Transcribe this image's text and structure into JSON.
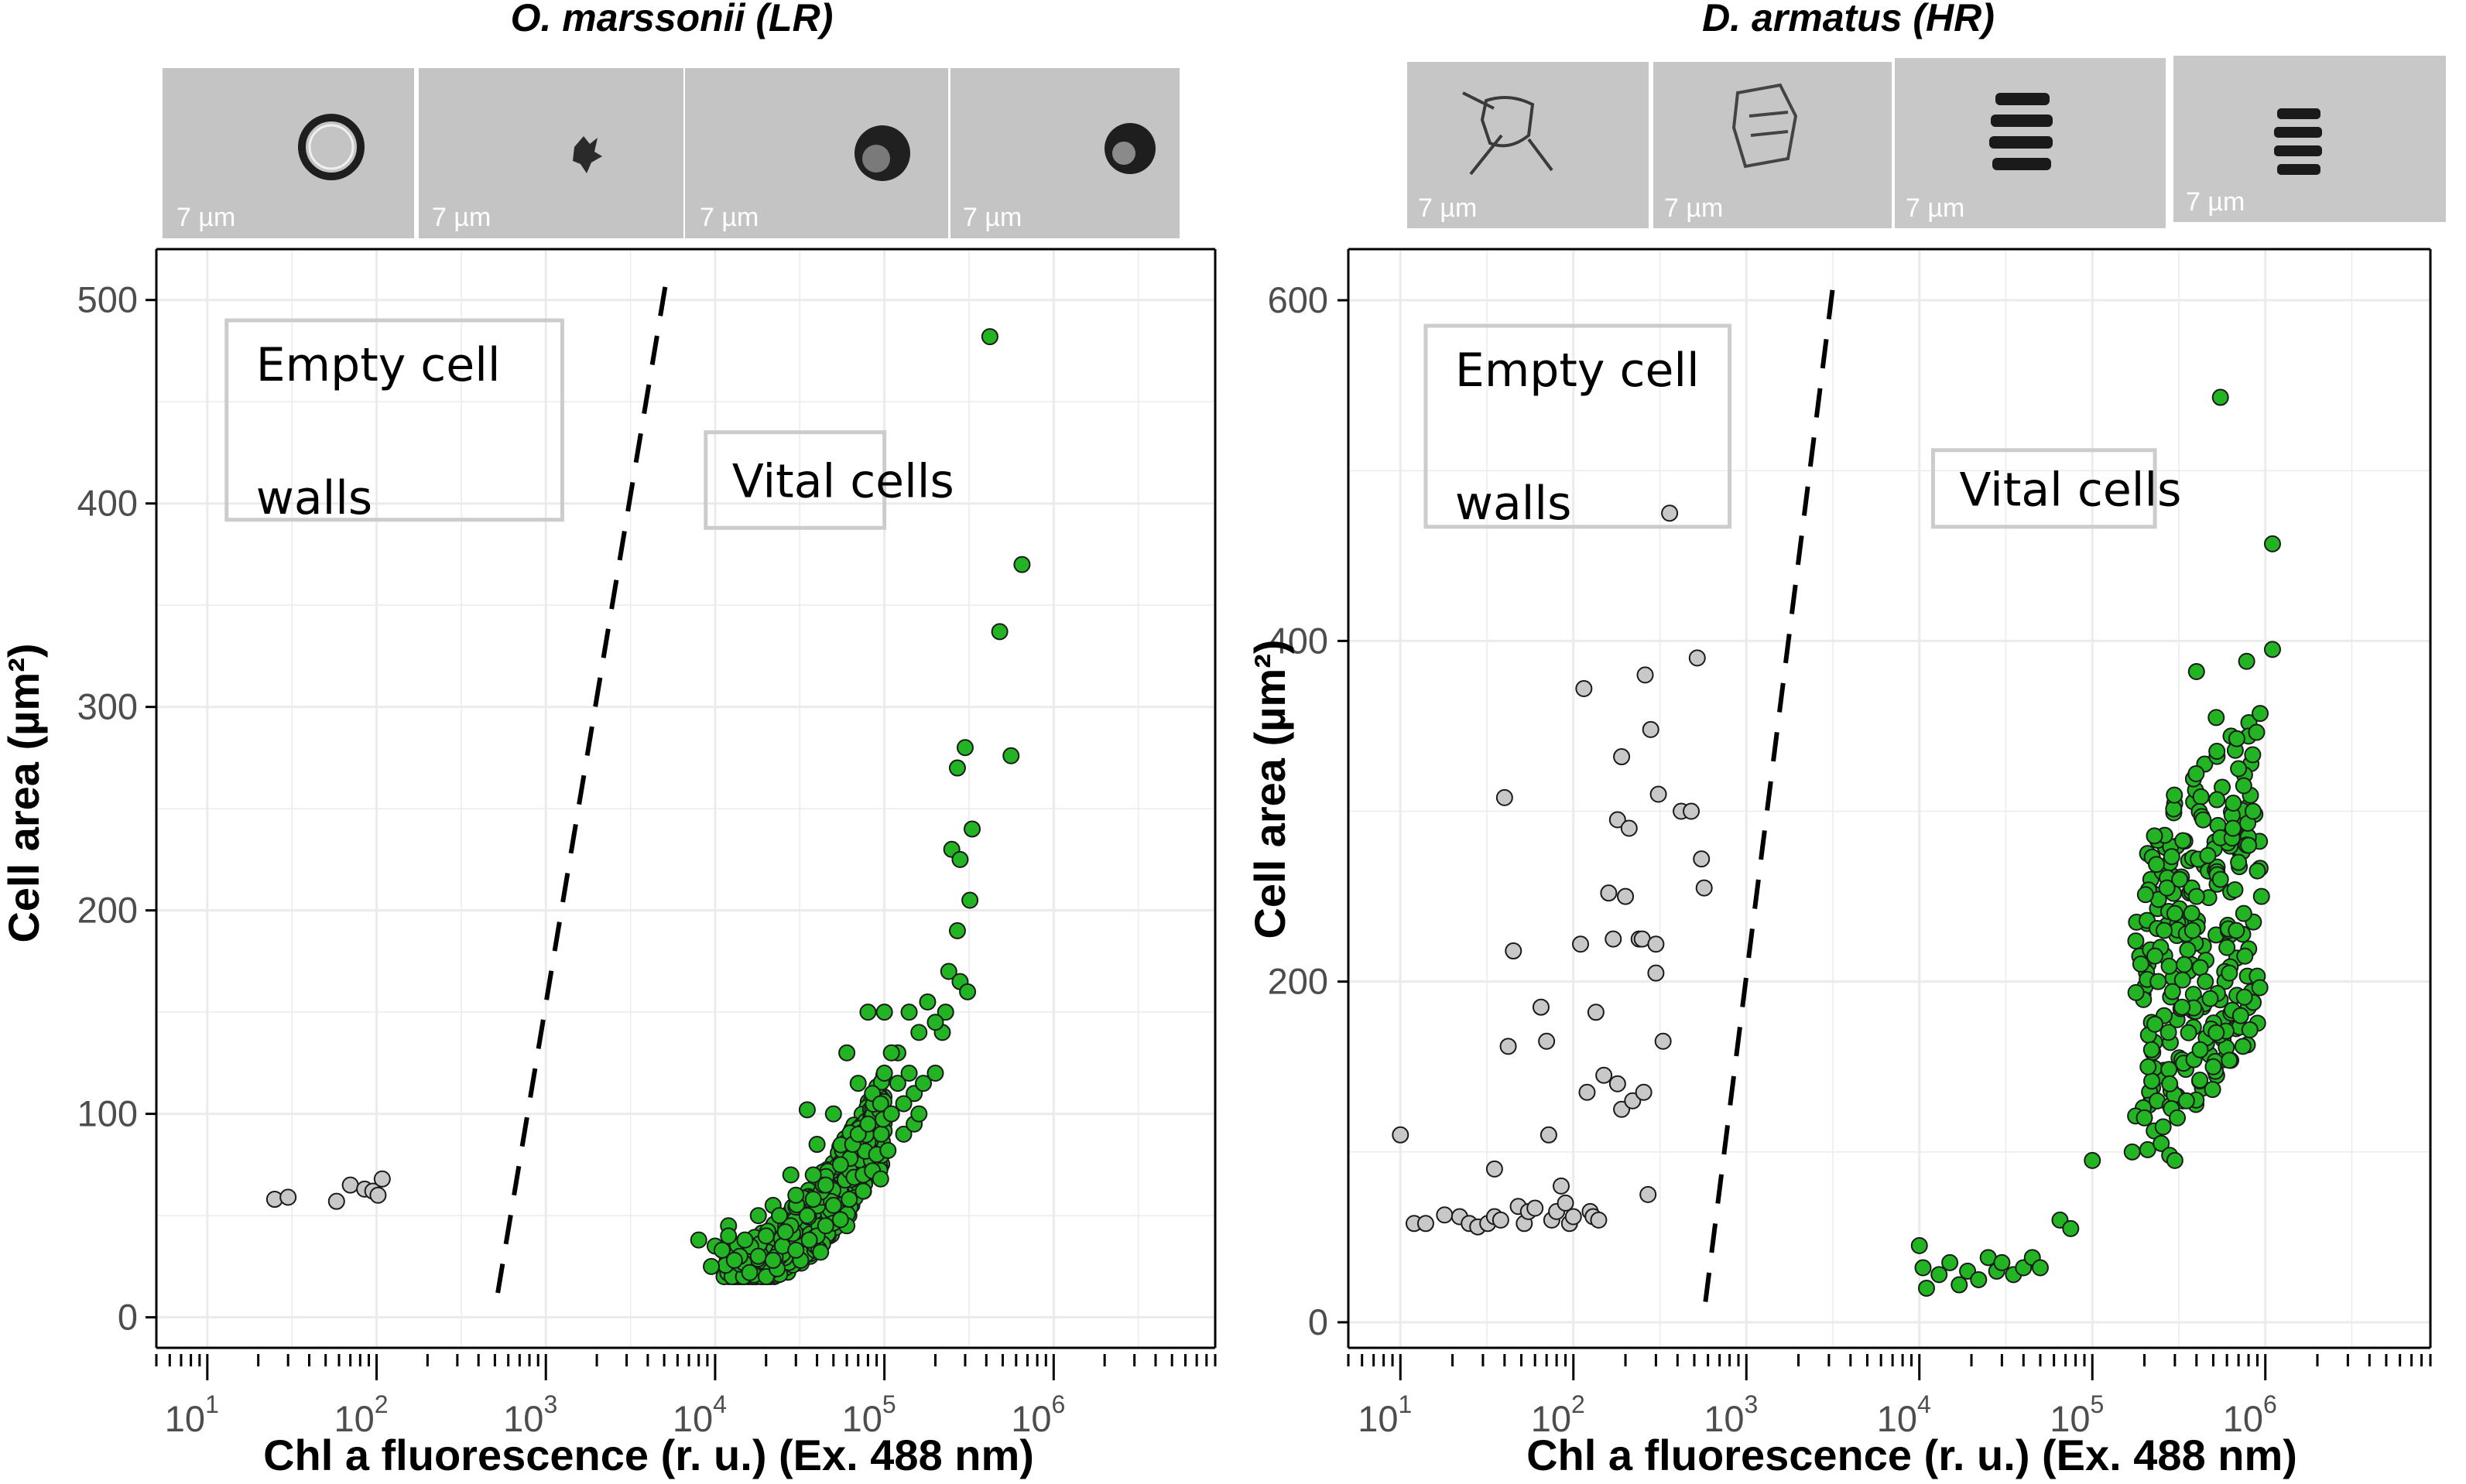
{
  "figure": {
    "colors": {
      "vital": "#22b422",
      "empty": "#c8c8c8",
      "marker_edge": "#1a1a1a",
      "grid": "#ebebeb",
      "annot_box": "#cccccc"
    },
    "cell_image_scale_label": "7 µm"
  },
  "chart_data": [
    {
      "type": "scatter",
      "title": "O. marssonii (LR)",
      "xlabel": "Chl a fluorescence (r. u.) (Ex. 488 nm)",
      "ylabel": "Cell area (µm²)",
      "xscale": "log10",
      "xlim": [
        5,
        9000000
      ],
      "ylim": [
        -15,
        525
      ],
      "x_ticks": [
        {
          "base": "10",
          "exp": "1",
          "value": 10
        },
        {
          "base": "10",
          "exp": "2",
          "value": 100
        },
        {
          "base": "10",
          "exp": "3",
          "value": 1000
        },
        {
          "base": "10",
          "exp": "4",
          "value": 10000
        },
        {
          "base": "10",
          "exp": "5",
          "value": 100000
        },
        {
          "base": "10",
          "exp": "6",
          "value": 1000000
        }
      ],
      "y_ticks": [
        "0",
        "100",
        "200",
        "300",
        "400",
        "500"
      ],
      "annotations": [
        {
          "lines": [
            "Empty cell",
            "walls"
          ],
          "x_at": 13,
          "y_at": 490,
          "x_to": 1250,
          "y_to": 392
        },
        {
          "lines": [
            "Vital cells"
          ],
          "x_at": 8800,
          "y_at": 435,
          "x_to": 100000,
          "y_to": 388
        }
      ],
      "boundary_line": {
        "style": "dashed",
        "points": [
          [
            520,
            12
          ],
          [
            5200,
            512
          ]
        ]
      },
      "series": [
        {
          "name": "Empty cell walls",
          "color": "#c8c8c8",
          "points": [
            [
              25,
              58
            ],
            [
              30,
              59
            ],
            [
              58,
              57
            ],
            [
              70,
              65
            ],
            [
              85,
              63
            ],
            [
              95,
              62
            ],
            [
              102,
              60
            ],
            [
              108,
              68
            ]
          ]
        },
        {
          "name": "Vital cells",
          "color": "#22b422",
          "points": [
            [
              8000,
              38
            ],
            [
              10000,
              35
            ],
            [
              9500,
              25
            ],
            [
              12000,
              45
            ],
            [
              14000,
              30
            ],
            [
              16000,
              22
            ],
            [
              18000,
              50
            ],
            [
              20000,
              40
            ],
            [
              22000,
              55
            ],
            [
              25000,
              35
            ],
            [
              28000,
              45
            ],
            [
              30000,
              60
            ],
            [
              32000,
              28
            ],
            [
              35000,
              50
            ],
            [
              38000,
              70
            ],
            [
              40000,
              40
            ],
            [
              45000,
              65
            ],
            [
              50000,
              55
            ],
            [
              55000,
              75
            ],
            [
              60000,
              45
            ],
            [
              65000,
              85
            ],
            [
              70000,
              90
            ],
            [
              75000,
              70
            ],
            [
              80000,
              95
            ],
            [
              85000,
              110
            ],
            [
              90000,
              80
            ],
            [
              95000,
              105
            ],
            [
              100000,
              120
            ],
            [
              110000,
              100
            ],
            [
              120000,
              115
            ],
            [
              130000,
              90
            ],
            [
              140000,
              120
            ],
            [
              150000,
              110
            ],
            [
              170000,
              115
            ],
            [
              200000,
              120
            ],
            [
              220000,
              140
            ],
            [
              240000,
              170
            ],
            [
              250000,
              230
            ],
            [
              270000,
              270
            ],
            [
              280000,
              225
            ],
            [
              300000,
              280
            ],
            [
              320000,
              205
            ],
            [
              330000,
              240
            ],
            [
              270000,
              190
            ],
            [
              280000,
              165
            ],
            [
              310000,
              160
            ],
            [
              230000,
              150
            ],
            [
              200000,
              145
            ],
            [
              180000,
              155
            ],
            [
              160000,
              140
            ],
            [
              140000,
              150
            ],
            [
              50000,
              100
            ],
            [
              60000,
              130
            ],
            [
              70000,
              115
            ],
            [
              80000,
              150
            ],
            [
              100000,
              150
            ],
            [
              120000,
              130
            ],
            [
              420000,
              482
            ],
            [
              650000,
              370
            ],
            [
              480000,
              337
            ],
            [
              560000,
              276
            ],
            [
              45000,
              45
            ],
            [
              30000,
              33
            ],
            [
              18000,
              30
            ],
            [
              15000,
              38
            ],
            [
              22000,
              28
            ],
            [
              26000,
              42
            ],
            [
              36000,
              38
            ],
            [
              42000,
              32
            ],
            [
              55000,
              48
            ],
            [
              62000,
              58
            ],
            [
              75000,
              62
            ],
            [
              85000,
              72
            ],
            [
              95000,
              68
            ],
            [
              105000,
              82
            ],
            [
              35000,
              102
            ],
            [
              28000,
              70
            ],
            [
              40000,
              85
            ],
            [
              110000,
              130
            ],
            [
              130000,
              105
            ],
            [
              150000,
              95
            ],
            [
              160000,
              100
            ],
            [
              12000,
              40
            ],
            [
              13000,
              28
            ],
            [
              11000,
              33
            ],
            [
              24000,
              50
            ],
            [
              38000,
              58
            ]
          ],
          "cloud": {
            "center": [
              30000,
              40
            ],
            "spread": "dense"
          }
        }
      ]
    },
    {
      "type": "scatter",
      "title": "D. armatus (HR)",
      "xlabel": "Chl a fluorescence (r. u.) (Ex. 488 nm)",
      "ylabel": "Cell area (µm²)",
      "xscale": "log10",
      "xlim": [
        5,
        9000000
      ],
      "ylim": [
        -15,
        630
      ],
      "x_ticks": [
        {
          "base": "10",
          "exp": "1",
          "value": 10
        },
        {
          "base": "10",
          "exp": "2",
          "value": 100
        },
        {
          "base": "10",
          "exp": "3",
          "value": 1000
        },
        {
          "base": "10",
          "exp": "4",
          "value": 10000
        },
        {
          "base": "10",
          "exp": "5",
          "value": 100000
        },
        {
          "base": "10",
          "exp": "6",
          "value": 1000000
        }
      ],
      "y_ticks": [
        "0",
        "200",
        "400",
        "600"
      ],
      "annotations": [
        {
          "lines": [
            "Empty cell",
            "walls"
          ],
          "x_at": 14,
          "y_at": 585,
          "x_to": 800,
          "y_to": 467
        },
        {
          "lines": [
            "Vital cells"
          ],
          "x_at": 12000,
          "y_at": 512,
          "x_to": 230000,
          "y_to": 467
        }
      ],
      "boundary_line": {
        "style": "dashed",
        "points": [
          [
            580,
            12
          ],
          [
            3200,
            612
          ]
        ]
      },
      "series": [
        {
          "name": "Empty cell walls",
          "color": "#c8c8c8",
          "points": [
            [
              10,
              110
            ],
            [
              12,
              58
            ],
            [
              14,
              58
            ],
            [
              18,
              63
            ],
            [
              22,
              62
            ],
            [
              25,
              58
            ],
            [
              28,
              56
            ],
            [
              32,
              58
            ],
            [
              35,
              90
            ],
            [
              35,
              62
            ],
            [
              38,
              60
            ],
            [
              40,
              308
            ],
            [
              42,
              162
            ],
            [
              45,
              218
            ],
            [
              48,
              68
            ],
            [
              52,
              58
            ],
            [
              55,
              65
            ],
            [
              60,
              67
            ],
            [
              65,
              185
            ],
            [
              70,
              165
            ],
            [
              72,
              110
            ],
            [
              75,
              60
            ],
            [
              80,
              65
            ],
            [
              85,
              80
            ],
            [
              90,
              70
            ],
            [
              95,
              58
            ],
            [
              100,
              62
            ],
            [
              110,
              222
            ],
            [
              115,
              372
            ],
            [
              120,
              135
            ],
            [
              125,
              65
            ],
            [
              130,
              62
            ],
            [
              135,
              182
            ],
            [
              140,
              60
            ],
            [
              150,
              145
            ],
            [
              160,
              252
            ],
            [
              170,
              225
            ],
            [
              180,
              295
            ],
            [
              190,
              125
            ],
            [
              200,
              250
            ],
            [
              210,
              290
            ],
            [
              220,
              130
            ],
            [
              240,
              225
            ],
            [
              255,
              135
            ],
            [
              260,
              380
            ],
            [
              270,
              75
            ],
            [
              280,
              348
            ],
            [
              300,
              205
            ],
            [
              310,
              310
            ],
            [
              330,
              165
            ],
            [
              360,
              475
            ],
            [
              420,
              300
            ],
            [
              480,
              300
            ],
            [
              520,
              390
            ],
            [
              550,
              272
            ],
            [
              570,
              255
            ],
            [
              190,
              332
            ],
            [
              250,
              225
            ],
            [
              300,
              222
            ],
            [
              180,
              140
            ]
          ]
        },
        {
          "name": "Vital cells",
          "color": "#22b422",
          "points": [
            [
              10000,
              45
            ],
            [
              10500,
              32
            ],
            [
              11000,
              20
            ],
            [
              13000,
              28
            ],
            [
              15000,
              35
            ],
            [
              17000,
              22
            ],
            [
              19000,
              30
            ],
            [
              22000,
              25
            ],
            [
              25000,
              38
            ],
            [
              28000,
              30
            ],
            [
              30000,
              35
            ],
            [
              35000,
              28
            ],
            [
              40000,
              32
            ],
            [
              45000,
              38
            ],
            [
              50000,
              32
            ],
            [
              65000,
              60
            ],
            [
              75000,
              55
            ],
            [
              100000,
              95
            ],
            [
              550000,
              543
            ],
            [
              1100000,
              457
            ],
            [
              1100000,
              395
            ],
            [
              400000,
              382
            ],
            [
              780000,
              388
            ],
            [
              520000,
              355
            ],
            [
              700000,
              325
            ],
            [
              750000,
              315
            ],
            [
              170000,
              100
            ],
            [
              200000,
              120
            ],
            [
              220000,
              160
            ],
            [
              240000,
              200
            ],
            [
              260000,
              180
            ],
            [
              280000,
              140
            ],
            [
              300000,
              240
            ],
            [
              320000,
              260
            ],
            [
              340000,
              210
            ],
            [
              360000,
              170
            ],
            [
              380000,
              230
            ],
            [
              400000,
              250
            ],
            [
              450000,
              200
            ],
            [
              500000,
              150
            ],
            [
              550000,
              260
            ],
            [
              600000,
              220
            ],
            [
              650000,
              290
            ],
            [
              700000,
              270
            ],
            [
              750000,
              240
            ],
            [
              800000,
              280
            ],
            [
              850000,
              300
            ],
            [
              900000,
              265
            ],
            [
              950000,
              250
            ],
            [
              250000,
              105
            ],
            [
              280000,
              98
            ],
            [
              300000,
              95
            ],
            [
              210000,
              150
            ],
            [
              230000,
              215
            ],
            [
              270000,
              255
            ],
            [
              330000,
              185
            ],
            [
              350000,
              130
            ],
            [
              420000,
              160
            ],
            [
              480000,
              190
            ],
            [
              520000,
              170
            ],
            [
              620000,
              205
            ],
            [
              680000,
              230
            ],
            [
              720000,
              180
            ],
            [
              260000,
              230
            ],
            [
              310000,
              120
            ],
            [
              230000,
              175
            ]
          ],
          "cloud": {
            "center": [
              320000,
              190
            ],
            "spread": "band"
          }
        }
      ]
    }
  ]
}
